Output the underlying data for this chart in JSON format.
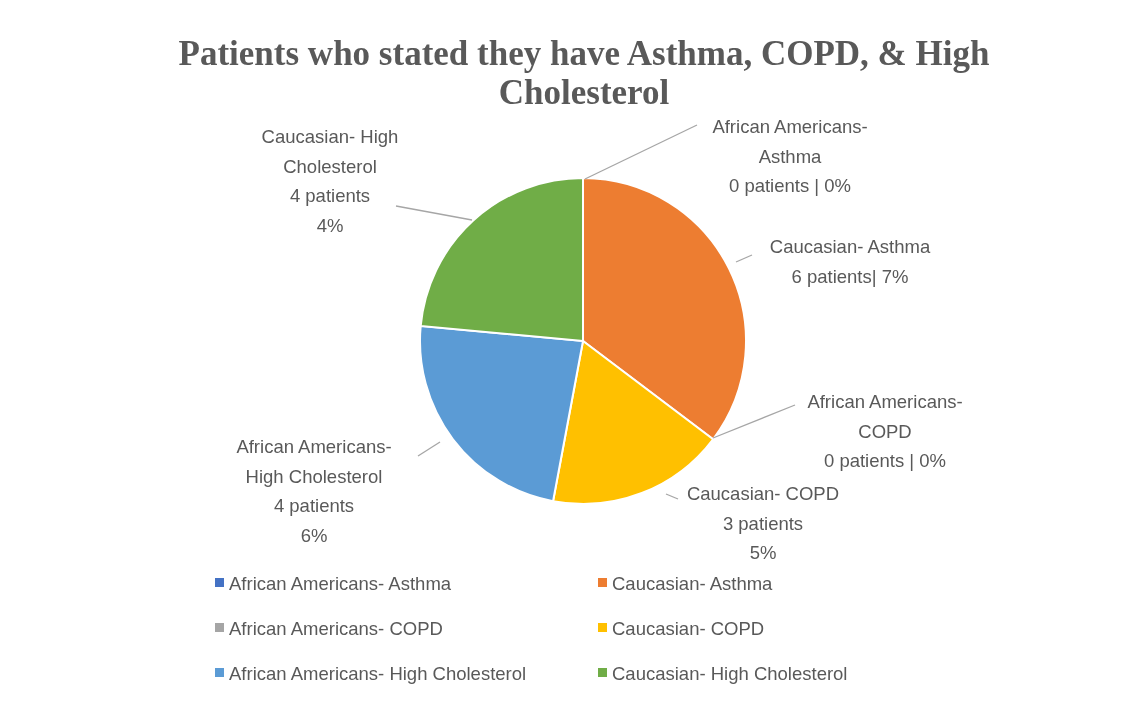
{
  "chart_data": {
    "type": "pie",
    "title": "Patients who stated they have Asthma, COPD, & High Cholesterol",
    "categories": [
      "African Americans- Asthma",
      "Caucasian- Asthma",
      "African Americans- COPD",
      "Caucasian- COPD",
      "African Americans- High Cholesterol",
      "Caucasian- High Cholesterol"
    ],
    "values": [
      0,
      6,
      0,
      3,
      4,
      4
    ],
    "colors": [
      "#4472c4",
      "#ed7d31",
      "#a5a5a5",
      "#ffc000",
      "#5b9bd5",
      "#70ad47"
    ],
    "value_labels": [
      "African Americans-\nAsthma\n0 patients | 0%",
      "Caucasian- Asthma\n6 patients| 7%",
      "African Americans-\nCOPD\n0 patients | 0%",
      "Caucasian- COPD\n3 patients\n5%",
      "African Americans-\nHigh Cholesterol\n4 patients\n6%",
      "Caucasian- High\nCholesterol\n4 patients\n4%"
    ],
    "legend": "bottom"
  }
}
